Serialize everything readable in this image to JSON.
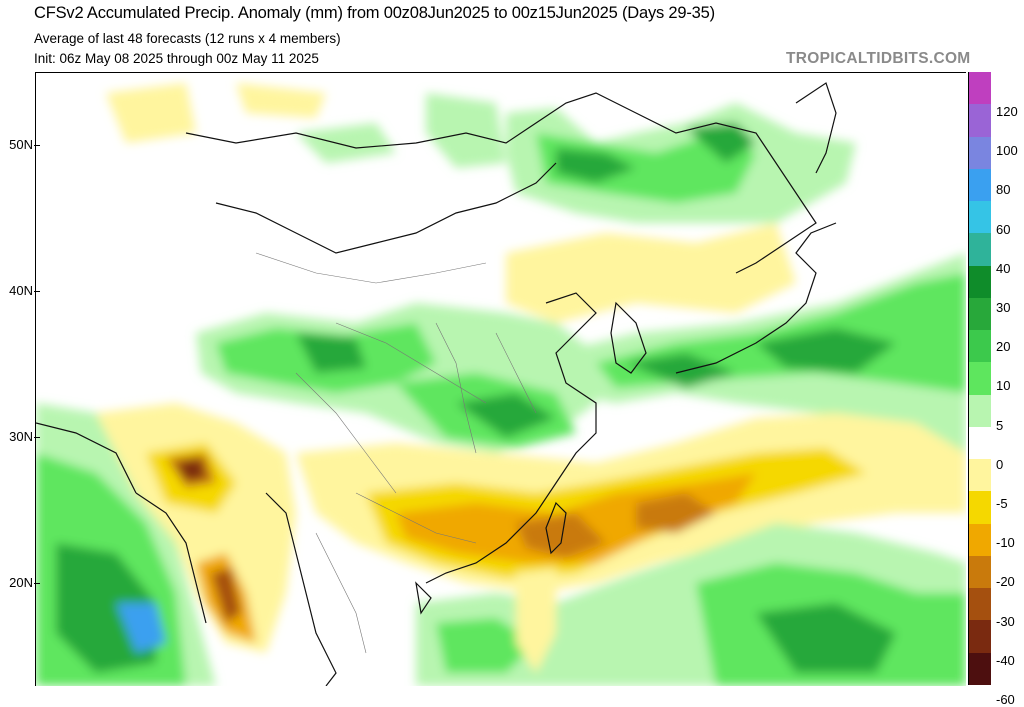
{
  "header": {
    "title": "CFSv2 Accumulated Precip. Anomaly (mm) from 00z08Jun2025 to 00z15Jun2025 (Days 29-35)",
    "subtitle": "Average of last 48 forecasts (12 runs x 4 members)",
    "init": "Init: 06z May 08 2025 through 00z May 11 2025",
    "brand": "TROPICALTIDBITS.COM"
  },
  "latitude_labels": [
    {
      "label": "50N",
      "lat": 50
    },
    {
      "label": "40N",
      "lat": 40
    },
    {
      "label": "30N",
      "lat": 30
    },
    {
      "label": "20N",
      "lat": 20
    }
  ],
  "colorbar": {
    "segments": [
      {
        "color": "#bf3fbf"
      },
      {
        "color": "#9a64d6"
      },
      {
        "color": "#7a85e0"
      },
      {
        "color": "#3aa0f0"
      },
      {
        "color": "#35c4e6"
      },
      {
        "color": "#2fb39a"
      },
      {
        "color": "#0f8c2a"
      },
      {
        "color": "#28a83a"
      },
      {
        "color": "#3cc94c"
      },
      {
        "color": "#5ee65e"
      },
      {
        "color": "#b8f5b0"
      },
      {
        "color": "#ffffff"
      },
      {
        "color": "#fff59e"
      },
      {
        "color": "#f5d800"
      },
      {
        "color": "#f0a800"
      },
      {
        "color": "#c97a0c"
      },
      {
        "color": "#a5500f"
      },
      {
        "color": "#7a2a10"
      },
      {
        "color": "#4d0f0f"
      }
    ],
    "labels": [
      "120",
      "100",
      "80",
      "60",
      "40",
      "30",
      "20",
      "10",
      "5",
      "0",
      "-5",
      "-10",
      "-20",
      "-30",
      "-40",
      "-60"
    ]
  },
  "map": {
    "type": "precipitation anomaly",
    "legend_units": "mm",
    "region": "East Asia",
    "colors": {
      "wet_light": "#b8f5b0",
      "wet_mid": "#5ee65e",
      "wet_strong": "#28a83a",
      "dry_light": "#fff59e",
      "dry_mid": "#f5d800",
      "dry_strong": "#f0a800",
      "dry_very": "#c97a0c",
      "dry_extreme": "#7a2a10",
      "blue": "#3aa0f0"
    }
  }
}
